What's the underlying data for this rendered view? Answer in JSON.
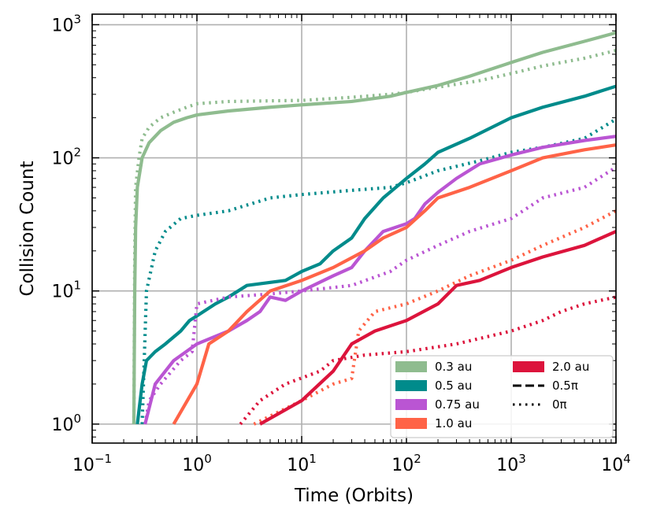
{
  "chart_data": {
    "type": "line",
    "xlabel": "Time (Orbits)",
    "ylabel": "Collision Count",
    "xscale": "log",
    "yscale": "log",
    "xlim": [
      0.1,
      10000
    ],
    "ylim": [
      0.72,
      1200
    ],
    "grid": true,
    "legend_placement": "bottom-right",
    "x_ticks": [
      {
        "value": 0.1,
        "base": "10",
        "exp": "−1"
      },
      {
        "value": 1,
        "base": "10",
        "exp": "0"
      },
      {
        "value": 10,
        "base": "10",
        "exp": "1"
      },
      {
        "value": 100,
        "base": "10",
        "exp": "2"
      },
      {
        "value": 1000,
        "base": "10",
        "exp": "3"
      },
      {
        "value": 10000,
        "base": "10",
        "exp": "4"
      }
    ],
    "y_ticks": [
      {
        "value": 1,
        "base": "10",
        "exp": "0"
      },
      {
        "value": 10,
        "base": "10",
        "exp": "1"
      },
      {
        "value": 100,
        "base": "10",
        "exp": "2"
      },
      {
        "value": 1000,
        "base": "10",
        "exp": "3"
      }
    ],
    "legend": {
      "colors": [
        {
          "label": "0.3 au",
          "color": "#8fbc8f"
        },
        {
          "label": "0.5 au",
          "color": "#008b8b"
        },
        {
          "label": "0.75 au",
          "color": "#ba55d3"
        },
        {
          "label": "1.0 au",
          "color": "#ff6347"
        },
        {
          "label": "2.0 au",
          "color": "#dc143c"
        }
      ],
      "styles": [
        {
          "label": "0.5π",
          "dash": "dashed"
        },
        {
          "label": "0π",
          "dash": "dotted"
        }
      ]
    },
    "series": [
      {
        "color": "#8fbc8f",
        "style": "solid",
        "points": [
          [
            0.25,
            1
          ],
          [
            0.255,
            10
          ],
          [
            0.26,
            30
          ],
          [
            0.27,
            60
          ],
          [
            0.3,
            100
          ],
          [
            0.35,
            130
          ],
          [
            0.45,
            160
          ],
          [
            0.6,
            185
          ],
          [
            0.8,
            200
          ],
          [
            1,
            210
          ],
          [
            2,
            225
          ],
          [
            5,
            240
          ],
          [
            10,
            250
          ],
          [
            30,
            265
          ],
          [
            70,
            290
          ],
          [
            100,
            310
          ],
          [
            200,
            350
          ],
          [
            400,
            410
          ],
          [
            1000,
            520
          ],
          [
            2000,
            620
          ],
          [
            5000,
            750
          ],
          [
            10000,
            870
          ]
        ]
      },
      {
        "color": "#8fbc8f",
        "style": "dotted",
        "points": [
          [
            0.25,
            1
          ],
          [
            0.255,
            20
          ],
          [
            0.26,
            60
          ],
          [
            0.28,
            100
          ],
          [
            0.3,
            140
          ],
          [
            0.35,
            170
          ],
          [
            0.45,
            200
          ],
          [
            0.6,
            220
          ],
          [
            0.8,
            240
          ],
          [
            1,
            255
          ],
          [
            2,
            265
          ],
          [
            5,
            268
          ],
          [
            10,
            270
          ],
          [
            30,
            285
          ],
          [
            70,
            300
          ],
          [
            100,
            310
          ],
          [
            200,
            340
          ],
          [
            500,
            380
          ],
          [
            1000,
            430
          ],
          [
            2000,
            490
          ],
          [
            5000,
            560
          ],
          [
            10000,
            640
          ]
        ]
      },
      {
        "color": "#008b8b",
        "style": "solid",
        "points": [
          [
            0.27,
            1
          ],
          [
            0.3,
            2
          ],
          [
            0.33,
            3
          ],
          [
            0.4,
            3.5
          ],
          [
            0.5,
            4
          ],
          [
            0.7,
            5
          ],
          [
            0.85,
            6
          ],
          [
            1,
            6.5
          ],
          [
            1.5,
            8
          ],
          [
            2,
            9
          ],
          [
            3,
            11
          ],
          [
            7,
            12
          ],
          [
            10,
            14
          ],
          [
            15,
            16
          ],
          [
            20,
            20
          ],
          [
            30,
            25
          ],
          [
            40,
            35
          ],
          [
            60,
            50
          ],
          [
            100,
            70
          ],
          [
            150,
            90
          ],
          [
            200,
            110
          ],
          [
            400,
            140
          ],
          [
            1000,
            200
          ],
          [
            2000,
            240
          ],
          [
            5000,
            290
          ],
          [
            10000,
            345
          ]
        ]
      },
      {
        "color": "#008b8b",
        "style": "dotted",
        "points": [
          [
            0.3,
            1
          ],
          [
            0.33,
            10
          ],
          [
            0.4,
            20
          ],
          [
            0.5,
            28
          ],
          [
            0.7,
            35
          ],
          [
            1,
            37
          ],
          [
            2,
            40
          ],
          [
            5,
            50
          ],
          [
            10,
            53
          ],
          [
            30,
            57
          ],
          [
            70,
            60
          ],
          [
            100,
            65
          ],
          [
            200,
            80
          ],
          [
            500,
            95
          ],
          [
            1000,
            110
          ],
          [
            2000,
            120
          ],
          [
            5000,
            140
          ],
          [
            10000,
            195
          ]
        ]
      },
      {
        "color": "#ba55d3",
        "style": "solid",
        "points": [
          [
            0.32,
            1
          ],
          [
            0.4,
            2
          ],
          [
            0.5,
            2.5
          ],
          [
            0.6,
            3
          ],
          [
            1,
            4
          ],
          [
            2,
            5
          ],
          [
            3,
            6
          ],
          [
            4,
            7
          ],
          [
            5,
            9
          ],
          [
            7,
            8.5
          ],
          [
            10,
            10
          ],
          [
            20,
            13
          ],
          [
            30,
            15
          ],
          [
            40,
            20
          ],
          [
            60,
            28
          ],
          [
            100,
            32
          ],
          [
            120,
            35
          ],
          [
            150,
            45
          ],
          [
            200,
            55
          ],
          [
            300,
            70
          ],
          [
            500,
            90
          ],
          [
            1000,
            105
          ],
          [
            2000,
            120
          ],
          [
            5000,
            135
          ],
          [
            10000,
            145
          ]
        ]
      },
      {
        "color": "#ba55d3",
        "style": "dotted",
        "points": [
          [
            0.32,
            1
          ],
          [
            0.35,
            1.5
          ],
          [
            0.45,
            2
          ],
          [
            0.7,
            3
          ],
          [
            0.9,
            3.5
          ],
          [
            1,
            8
          ],
          [
            2,
            9
          ],
          [
            5,
            9.5
          ],
          [
            10,
            10
          ],
          [
            30,
            11
          ],
          [
            70,
            14
          ],
          [
            100,
            17
          ],
          [
            200,
            22
          ],
          [
            400,
            28
          ],
          [
            1000,
            35
          ],
          [
            2000,
            50
          ],
          [
            5000,
            60
          ],
          [
            10000,
            85
          ]
        ]
      },
      {
        "color": "#ff6347",
        "style": "solid",
        "points": [
          [
            0.6,
            1
          ],
          [
            1,
            2
          ],
          [
            1.3,
            4
          ],
          [
            2,
            5
          ],
          [
            3,
            7
          ],
          [
            5,
            10
          ],
          [
            10,
            12
          ],
          [
            20,
            15
          ],
          [
            40,
            20
          ],
          [
            60,
            25
          ],
          [
            100,
            30
          ],
          [
            150,
            40
          ],
          [
            200,
            50
          ],
          [
            400,
            60
          ],
          [
            1000,
            80
          ],
          [
            2000,
            100
          ],
          [
            5000,
            115
          ],
          [
            10000,
            125
          ]
        ]
      },
      {
        "color": "#ff6347",
        "style": "dotted",
        "points": [
          [
            3.5,
            1
          ],
          [
            10,
            1.5
          ],
          [
            20,
            2
          ],
          [
            30,
            2.2
          ],
          [
            35,
            5
          ],
          [
            50,
            7
          ],
          [
            100,
            8
          ],
          [
            200,
            10
          ],
          [
            400,
            13
          ],
          [
            1000,
            17
          ],
          [
            2000,
            22
          ],
          [
            5000,
            30
          ],
          [
            10000,
            40
          ]
        ]
      },
      {
        "color": "#dc143c",
        "style": "solid",
        "points": [
          [
            4,
            1
          ],
          [
            10,
            1.5
          ],
          [
            20,
            2.5
          ],
          [
            30,
            4
          ],
          [
            50,
            5
          ],
          [
            100,
            6
          ],
          [
            200,
            8
          ],
          [
            300,
            11
          ],
          [
            500,
            12
          ],
          [
            1000,
            15
          ],
          [
            2000,
            18
          ],
          [
            5000,
            22
          ],
          [
            10000,
            28
          ]
        ]
      },
      {
        "color": "#dc143c",
        "style": "dotted",
        "points": [
          [
            2.6,
            1
          ],
          [
            4,
            1.5
          ],
          [
            7,
            2
          ],
          [
            15,
            2.5
          ],
          [
            20,
            3
          ],
          [
            40,
            3.3
          ],
          [
            100,
            3.5
          ],
          [
            300,
            4
          ],
          [
            1000,
            5
          ],
          [
            2000,
            6
          ],
          [
            3000,
            7
          ],
          [
            5000,
            8
          ],
          [
            10000,
            9
          ]
        ]
      }
    ]
  }
}
